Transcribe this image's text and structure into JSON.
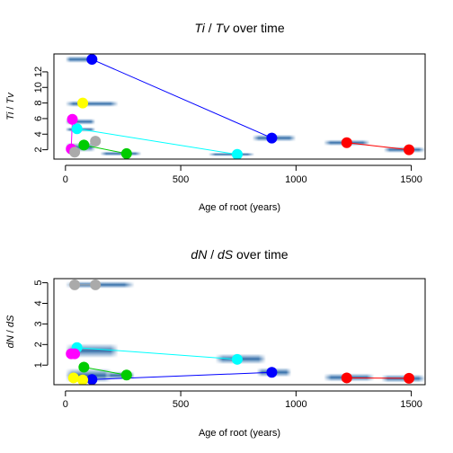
{
  "chart_data": [
    {
      "type": "scatter",
      "title_parts": [
        {
          "text": "Ti",
          "italic": true
        },
        {
          "text": " / ",
          "italic": false
        },
        {
          "text": "Tv",
          "italic": true
        },
        {
          "text": " over time",
          "italic": false
        }
      ],
      "xlabel": "Age of root (years)",
      "ylabel_parts": [
        {
          "text": "Ti",
          "italic": true
        },
        {
          "text": " / ",
          "italic": false
        },
        {
          "text": "Tv",
          "italic": true
        }
      ],
      "xlim": [
        -50,
        1560
      ],
      "ylim": [
        0.8,
        14.3
      ],
      "xticks": [
        0,
        500,
        1000,
        1500
      ],
      "yticks": [
        2,
        4,
        6,
        8,
        10,
        12
      ],
      "density_bands": [
        {
          "x0": 0,
          "x1": 140,
          "y": 13.6,
          "w": 0.9
        },
        {
          "x0": 0,
          "x1": 230,
          "y": 7.9,
          "w": 0.8
        },
        {
          "x0": 0,
          "x1": 130,
          "y": 5.6,
          "w": 0.8
        },
        {
          "x0": 0,
          "x1": 130,
          "y": 4.6,
          "w": 0.6
        },
        {
          "x0": 0,
          "x1": 130,
          "y": 2.3,
          "w": 1.2
        },
        {
          "x0": 150,
          "x1": 330,
          "y": 1.5,
          "w": 0.6
        },
        {
          "x0": 620,
          "x1": 820,
          "y": 1.4,
          "w": 0.5
        },
        {
          "x0": 810,
          "x1": 1000,
          "y": 3.5,
          "w": 0.9
        },
        {
          "x0": 1120,
          "x1": 1320,
          "y": 2.9,
          "w": 0.8
        },
        {
          "x0": 1380,
          "x1": 1560,
          "y": 2.0,
          "w": 0.8
        }
      ],
      "series": [
        {
          "color": "#0000FF",
          "points": [
            [
              115,
              13.6
            ],
            [
              895,
              3.5
            ]
          ]
        },
        {
          "color": "#00FFFF",
          "points": [
            [
              50,
              4.7
            ],
            [
              745,
              1.4
            ]
          ]
        },
        {
          "color": "#00CC00",
          "points": [
            [
              80,
              2.6
            ],
            [
              265,
              1.5
            ]
          ]
        },
        {
          "color": "#FF0000",
          "points": [
            [
              1220,
              2.9
            ],
            [
              1490,
              2.0
            ]
          ]
        },
        {
          "color": "#FFFF00",
          "points": [
            [
              75,
              8.0
            ]
          ]
        },
        {
          "color": "#FF00FF",
          "points": [
            [
              30,
              5.9
            ],
            [
              25,
              2.1
            ]
          ]
        },
        {
          "color": "#AAAAAA",
          "points": [
            [
              40,
              1.7
            ],
            [
              130,
              3.1
            ]
          ]
        }
      ]
    },
    {
      "type": "scatter",
      "title_parts": [
        {
          "text": "dN",
          "italic": true
        },
        {
          "text": " / ",
          "italic": false
        },
        {
          "text": "dS",
          "italic": true
        },
        {
          "text": " over time",
          "italic": false
        }
      ],
      "xlabel": "Age of root (years)",
      "ylabel_parts": [
        {
          "text": "dN",
          "italic": true
        },
        {
          "text": " / ",
          "italic": false
        },
        {
          "text": "dS",
          "italic": true
        }
      ],
      "xlim": [
        -50,
        1560
      ],
      "ylim": [
        0.05,
        5.2
      ],
      "xticks": [
        0,
        500,
        1000,
        1500
      ],
      "yticks": [
        1,
        2,
        3,
        4,
        5
      ],
      "density_bands": [
        {
          "x0": 0,
          "x1": 300,
          "y": 4.9,
          "w": 0.35
        },
        {
          "x0": 0,
          "x1": 230,
          "y": 1.7,
          "w": 0.7
        },
        {
          "x0": 0,
          "x1": 200,
          "y": 0.5,
          "w": 0.7
        },
        {
          "x0": 180,
          "x1": 300,
          "y": 0.5,
          "w": 0.4
        },
        {
          "x0": 650,
          "x1": 870,
          "y": 1.3,
          "w": 0.5
        },
        {
          "x0": 830,
          "x1": 980,
          "y": 0.65,
          "w": 0.45
        },
        {
          "x0": 1120,
          "x1": 1340,
          "y": 0.4,
          "w": 0.4
        },
        {
          "x0": 1370,
          "x1": 1560,
          "y": 0.35,
          "w": 0.4
        }
      ],
      "series": [
        {
          "color": "#0000FF",
          "points": [
            [
              115,
              0.3
            ],
            [
              895,
              0.65
            ]
          ]
        },
        {
          "color": "#00FFFF",
          "points": [
            [
              50,
              1.85
            ],
            [
              745,
              1.28
            ]
          ]
        },
        {
          "color": "#00CC00",
          "points": [
            [
              80,
              0.9
            ],
            [
              265,
              0.52
            ]
          ]
        },
        {
          "color": "#FF0000",
          "points": [
            [
              1220,
              0.38
            ],
            [
              1490,
              0.36
            ]
          ]
        },
        {
          "color": "#FFFF00",
          "points": [
            [
              35,
              0.38
            ],
            [
              75,
              0.28
            ]
          ]
        },
        {
          "color": "#FF00FF",
          "points": [
            [
              25,
              1.55
            ],
            [
              40,
              1.55
            ]
          ]
        },
        {
          "color": "#AAAAAA",
          "points": [
            [
              40,
              4.9
            ],
            [
              130,
              4.9
            ]
          ]
        }
      ]
    }
  ]
}
